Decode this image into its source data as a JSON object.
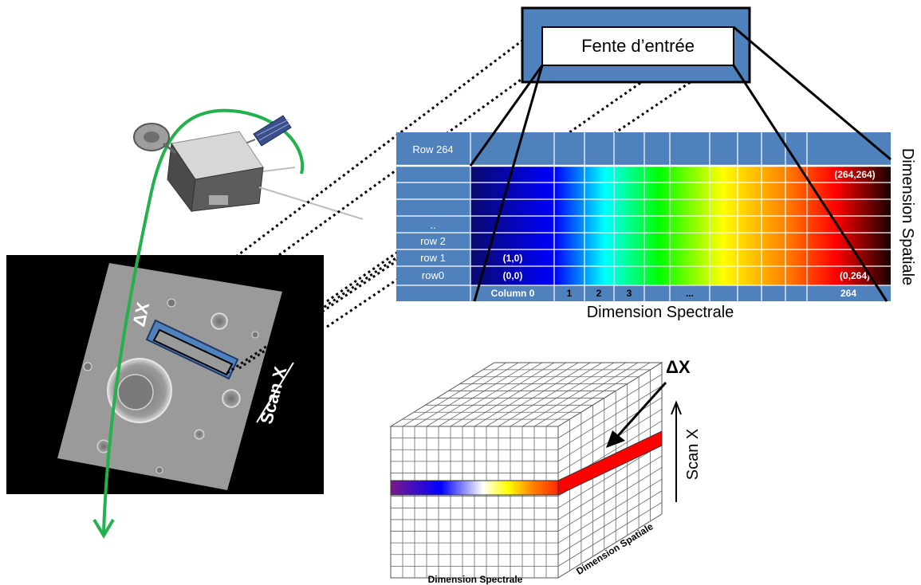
{
  "slit": {
    "label": "Fente d’entrée"
  },
  "detector": {
    "top_row_label": "Row 264",
    "row_labels": [
      "",
      "",
      "",
      "..",
      "row 2",
      "row 1",
      "row0"
    ],
    "cell_labels": {
      "top_right": "(264,264)",
      "row1_start": "(1,0)",
      "row0_start": "(0,0)",
      "row0_end": "(0,264)"
    },
    "column_labels": [
      "Column 0",
      "1",
      "2",
      "3",
      "...",
      "264"
    ],
    "x_axis_label": "Dimension Spectrale",
    "y_axis_label": "Dimension Spatiale"
  },
  "surface": {
    "delta_label": "ΔX",
    "scan_label": "Scan X"
  },
  "cube": {
    "delta_label": "ΔX",
    "scan_label": "Scan X",
    "front_label": "Dimension Spectrale",
    "side_label": "Dimension Spatiale"
  },
  "colors": {
    "detector_blue": "#4f81bd",
    "orbit_green": "#22b14c",
    "slit_highlight": "#ff0000"
  }
}
